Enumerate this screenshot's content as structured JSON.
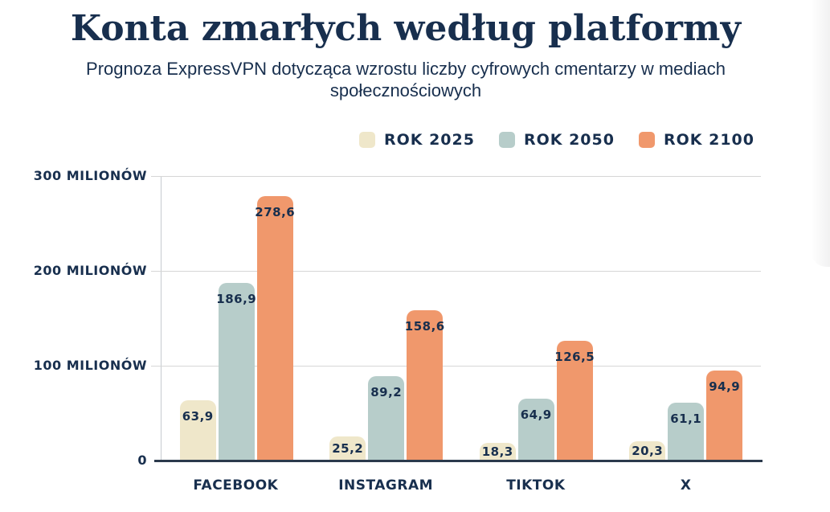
{
  "header": {
    "title": "Konta zmarłych według platformy",
    "subtitle": "Prognoza ExpressVPN dotycząca wzrostu liczby cyfrowych cmentarzy w mediach społecznościowych"
  },
  "colors": {
    "text": "#182f4e",
    "axis": "#2b3a4c",
    "gridline": "#d6d6d6",
    "background": "#ffffff",
    "series_2025": "#efe7ca",
    "series_2050": "#b7cdca",
    "series_2100": "#f0986c"
  },
  "chart_data": {
    "type": "bar",
    "title": "Konta zmarłych według platformy",
    "subtitle": "Prognoza ExpressVPN dotycząca wzrostu liczby cyfrowych cmentarzy w mediach społecznościowych",
    "categories": [
      "FACEBOOK",
      "INSTAGRAM",
      "TIKTOK",
      "X"
    ],
    "series": [
      {
        "name": "ROK 2025",
        "color": "#efe7ca",
        "values": [
          63.9,
          25.2,
          18.3,
          20.3
        ]
      },
      {
        "name": "ROK 2050",
        "color": "#b7cdca",
        "values": [
          186.9,
          89.2,
          64.9,
          61.1
        ]
      },
      {
        "name": "ROK 2100",
        "color": "#f0986c",
        "values": [
          278.6,
          158.6,
          126.5,
          94.9
        ]
      }
    ],
    "value_label_decimal_separator": ",",
    "y_axis": {
      "range": [
        0,
        300
      ],
      "ticks": [
        {
          "value": 300,
          "label": "300 MILIONÓW"
        },
        {
          "value": 200,
          "label": "200 MILIONÓW"
        },
        {
          "value": 100,
          "label": "100 MILIONÓW"
        },
        {
          "value": 0,
          "label": "0"
        }
      ]
    },
    "xlabel": "",
    "ylabel": "",
    "grid": true,
    "legend_position": "top-right"
  }
}
